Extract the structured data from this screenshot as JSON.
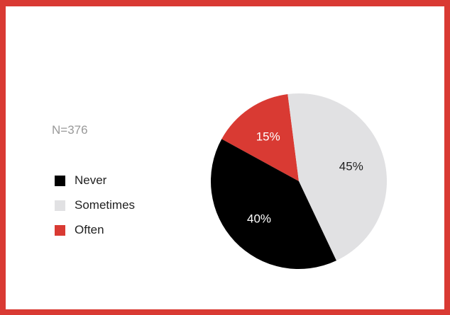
{
  "sample": "N=376",
  "chart_data": {
    "type": "pie",
    "slices": [
      {
        "label": "Never",
        "value": 40,
        "display": "40%",
        "color": "#000000",
        "text_color": "#ffffff"
      },
      {
        "label": "Sometimes",
        "value": 45,
        "display": "45%",
        "color": "#e1e1e3",
        "text_color": "#222222"
      },
      {
        "label": "Often",
        "value": 15,
        "display": "15%",
        "color": "#d93a33",
        "text_color": "#ffffff"
      }
    ],
    "legend_position": "left"
  },
  "colors": {
    "frame": "#d93a33",
    "note": "#999999"
  }
}
